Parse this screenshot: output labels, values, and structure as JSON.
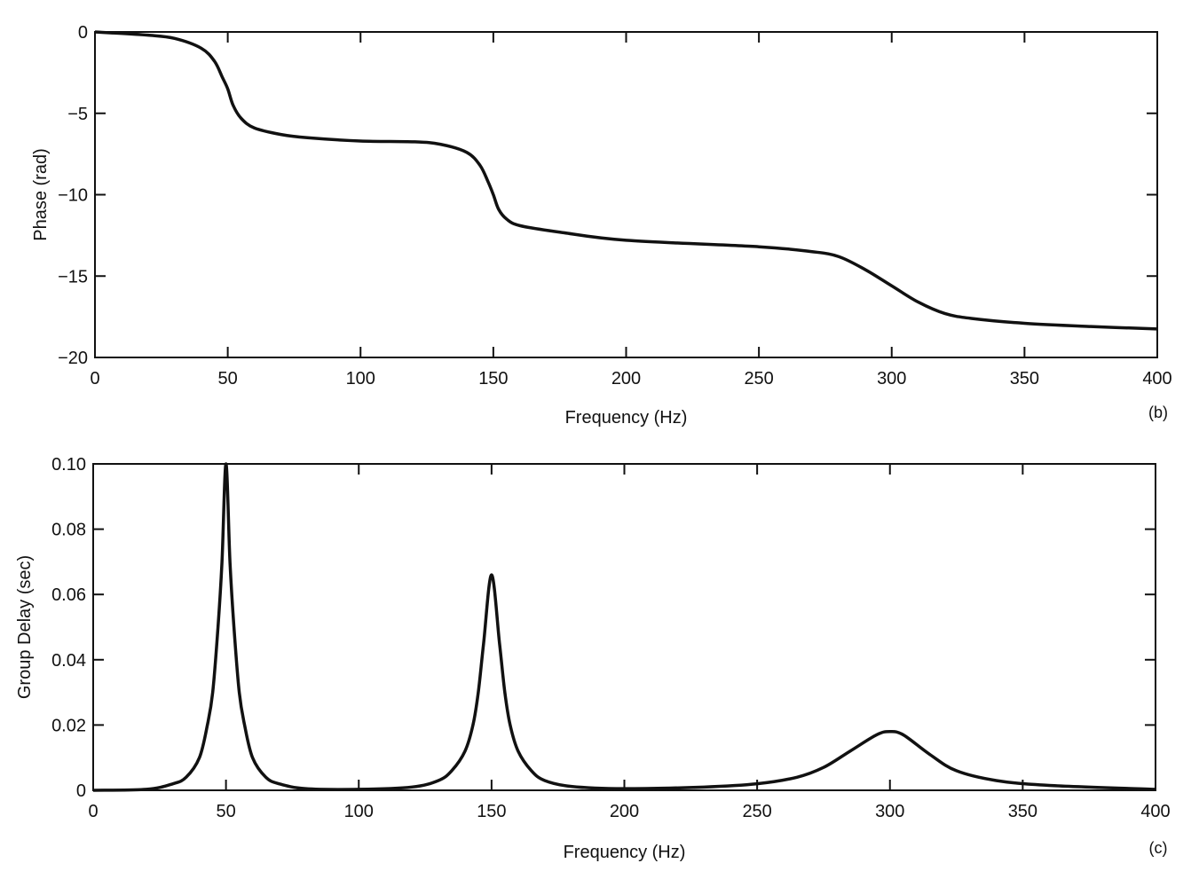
{
  "chart_data": [
    {
      "type": "line",
      "panel_label": "(b)",
      "title": "",
      "xlabel": "Frequency (Hz)",
      "ylabel": "Phase (rad)",
      "xlim": [
        0,
        400
      ],
      "ylim": [
        -20,
        0
      ],
      "xticks": [
        0,
        50,
        100,
        150,
        200,
        250,
        300,
        350,
        400
      ],
      "xtick_labels": [
        "0",
        "50",
        "100",
        "150",
        "200",
        "250",
        "300",
        "350",
        "400"
      ],
      "yticks": [
        0,
        -5,
        -10,
        -15,
        -20
      ],
      "ytick_labels": [
        "0",
        "−5",
        "−10",
        "−15",
        "−20"
      ],
      "grid": false,
      "series": [
        {
          "name": "phase",
          "x": [
            0,
            20,
            30,
            40,
            45,
            48,
            50,
            52,
            55,
            60,
            70,
            80,
            100,
            120,
            130,
            140,
            145,
            148,
            150,
            152,
            155,
            160,
            175,
            200,
            250,
            270,
            280,
            290,
            300,
            310,
            320,
            330,
            350,
            375,
            400
          ],
          "y": [
            0,
            -0.2,
            -0.4,
            -1.0,
            -1.8,
            -2.8,
            -3.5,
            -4.5,
            -5.3,
            -5.9,
            -6.3,
            -6.5,
            -6.7,
            -6.75,
            -6.9,
            -7.4,
            -8.2,
            -9.2,
            -10.0,
            -10.9,
            -11.5,
            -11.9,
            -12.3,
            -12.8,
            -13.2,
            -13.5,
            -13.8,
            -14.6,
            -15.6,
            -16.6,
            -17.3,
            -17.6,
            -17.9,
            -18.1,
            -18.25
          ]
        }
      ]
    },
    {
      "type": "line",
      "panel_label": "(c)",
      "title": "",
      "xlabel": "Frequency (Hz)",
      "ylabel": "Group Delay (sec)",
      "xlim": [
        0,
        400
      ],
      "ylim": [
        0,
        0.1
      ],
      "xticks": [
        0,
        50,
        100,
        150,
        200,
        250,
        300,
        350,
        400
      ],
      "xtick_labels": [
        "0",
        "50",
        "100",
        "150",
        "200",
        "250",
        "300",
        "350",
        "400"
      ],
      "yticks": [
        0,
        0.02,
        0.04,
        0.06,
        0.08,
        0.1
      ],
      "ytick_labels": [
        "0",
        "0.02",
        "0.04",
        "0.06",
        "0.08",
        "0.10"
      ],
      "grid": false,
      "series": [
        {
          "name": "group delay",
          "x": [
            0,
            20,
            30,
            35,
            40,
            43,
            45,
            47,
            48.5,
            50,
            51.5,
            53,
            55,
            57,
            60,
            65,
            70,
            80,
            100,
            120,
            130,
            135,
            140,
            143,
            145,
            147,
            150,
            153,
            155,
            157,
            160,
            165,
            170,
            180,
            200,
            230,
            250,
            265,
            275,
            285,
            295,
            300,
            305,
            315,
            325,
            340,
            360,
            400
          ],
          "y": [
            0,
            0.0003,
            0.002,
            0.004,
            0.01,
            0.02,
            0.03,
            0.05,
            0.07,
            0.1,
            0.07,
            0.05,
            0.03,
            0.02,
            0.01,
            0.004,
            0.002,
            0.0005,
            0.0003,
            0.001,
            0.003,
            0.006,
            0.012,
            0.02,
            0.03,
            0.045,
            0.066,
            0.045,
            0.03,
            0.02,
            0.012,
            0.006,
            0.003,
            0.0012,
            0.0005,
            0.001,
            0.002,
            0.004,
            0.007,
            0.012,
            0.017,
            0.018,
            0.017,
            0.011,
            0.006,
            0.003,
            0.0015,
            0.0003
          ]
        }
      ]
    }
  ]
}
